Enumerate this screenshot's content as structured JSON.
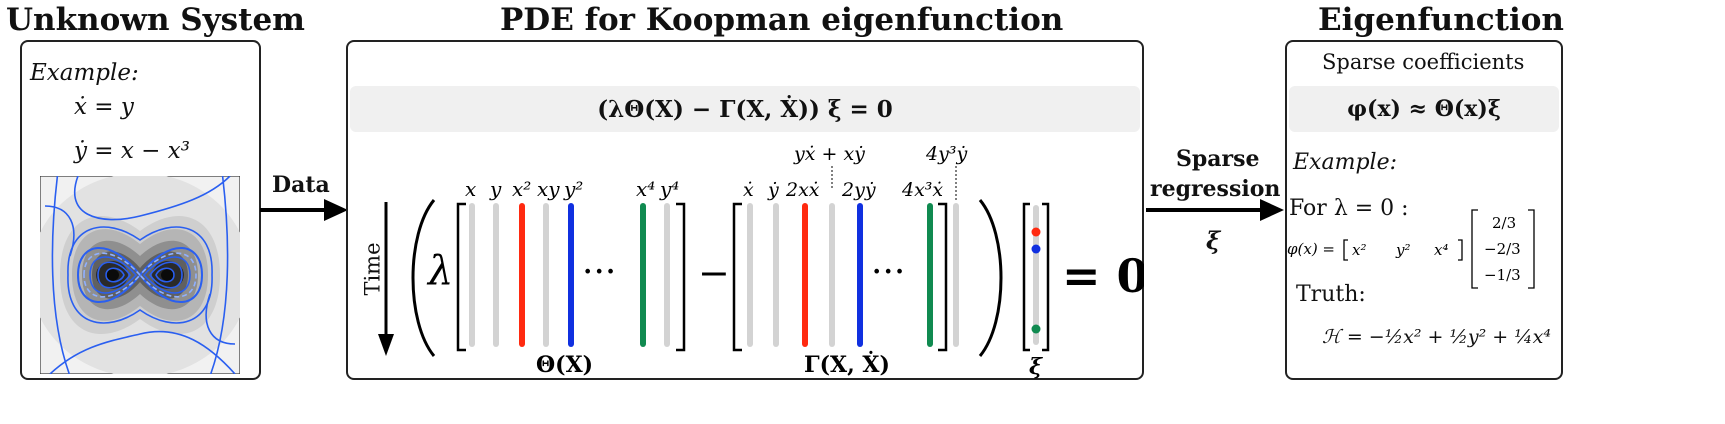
{
  "titles": {
    "left": "Unknown System",
    "middle": "PDE for Koopman eigenfunction",
    "right": "Eigenfunction"
  },
  "left_panel": {
    "example_label": "Example:",
    "eq1": "ẋ = y",
    "eq2": "ẏ = x − x³"
  },
  "arrows": {
    "data_label": "Data",
    "sparse_line1": "Sparse",
    "sparse_line2": "regression",
    "xi": "ξ"
  },
  "middle_panel": {
    "pde": "(λΘ(X) − Γ(X, Ẋ)) ξ = 0",
    "time_label": "Time",
    "lambda": "λ",
    "theta_headers": [
      "x",
      "y",
      "x²",
      "xy",
      "y²",
      "x⁴",
      "y⁴"
    ],
    "gamma_headers": [
      "ẋ",
      "ẏ",
      "2xẋ",
      "2yẏ",
      "4x³ẋ"
    ],
    "gamma_annot_1": "yẋ + xẏ",
    "gamma_annot_2": "4y³ẏ",
    "theta_label": "Θ(X)",
    "gamma_label": "Γ(X, Ẋ)",
    "xi_label": "ξ",
    "equals_zero": "= 0",
    "minus": "−",
    "dots": "···"
  },
  "right_panel": {
    "sparse_coeff": "Sparse coefficients",
    "approx": "φ(x) ≈ Θ(x)ξ",
    "example_label": "Example:",
    "for_lambda": "For  λ = 0 :",
    "phi_lhs": "φ(x) =",
    "row_terms": [
      "x²",
      "y²",
      "x⁴"
    ],
    "coeffs": [
      "2/3",
      "−2/3",
      "−1/3"
    ],
    "truth_label": "Truth:",
    "truth_eq": "ℋ = −½x² + ½y² + ¼x⁴"
  },
  "colors": {
    "red": "#ff2a10",
    "blue": "#1030e0",
    "green": "#108a50",
    "gray": "#d3d3d3",
    "contour": "#2a5ff0"
  }
}
